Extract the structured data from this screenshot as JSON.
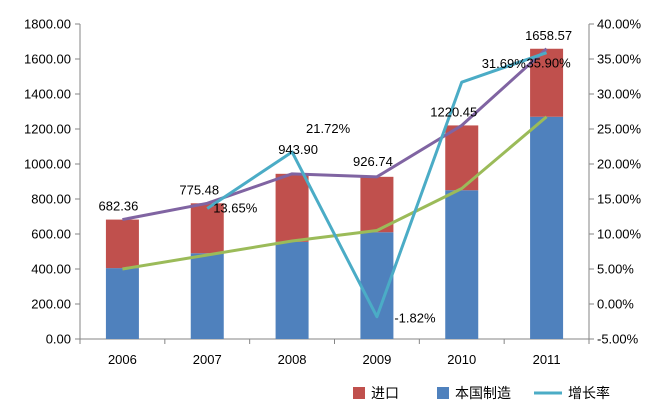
{
  "chart_data": {
    "type": "bar",
    "categories": [
      "2006",
      "2007",
      "2008",
      "2009",
      "2010",
      "2011"
    ],
    "stacked": true,
    "series": [
      {
        "name": "本国制造",
        "kind": "bar",
        "axis": "left",
        "color": "#4f81bd",
        "values": [
          405,
          490,
          555,
          610,
          850,
          1270
        ]
      },
      {
        "name": "进口",
        "kind": "bar",
        "axis": "left",
        "color": "#c0504d",
        "values": [
          277.36,
          285.48,
          388.9,
          316.74,
          370.45,
          388.57
        ]
      },
      {
        "name": "增长率",
        "kind": "line",
        "axis": "right",
        "color": "#4bacc6",
        "values": [
          null,
          13.65,
          21.72,
          -1.82,
          31.69,
          35.9
        ]
      }
    ],
    "unlabeled_lines": [
      {
        "axis": "left",
        "color": "#8064a2",
        "values": [
          682.36,
          775.48,
          943.9,
          926.74,
          1220.45,
          1658.57
        ]
      },
      {
        "axis": "left",
        "color": "#9bbb59",
        "values": [
          400,
          480,
          560,
          620,
          860,
          1270
        ]
      }
    ],
    "bar_total_labels": [
      "682.36",
      "775.48",
      "943.90",
      "926.74",
      "1220.45",
      "1658.57"
    ],
    "rate_labels": [
      "13.65%",
      "21.72%",
      "-1.82%",
      "31.69%",
      "35.90%"
    ],
    "left_axis": {
      "ylim": [
        0,
        1800
      ],
      "ticks": [
        "0.00",
        "200.00",
        "400.00",
        "600.00",
        "800.00",
        "1000.00",
        "1200.00",
        "1400.00",
        "1600.00",
        "1800.00"
      ]
    },
    "right_axis": {
      "ylim": [
        -5,
        40
      ],
      "ticks": [
        "-5.00%",
        "0.00%",
        "5.00%",
        "10.00%",
        "15.00%",
        "20.00%",
        "25.00%",
        "30.00%",
        "35.00%",
        "40.00%"
      ]
    },
    "legend": {
      "position": "bottom-right",
      "items": [
        {
          "label": "进口",
          "marker": "box",
          "color": "#c0504d"
        },
        {
          "label": "本国制造",
          "marker": "box",
          "color": "#4f81bd"
        },
        {
          "label": "增长率",
          "marker": "line",
          "color": "#4bacc6"
        }
      ]
    },
    "grid": false
  }
}
